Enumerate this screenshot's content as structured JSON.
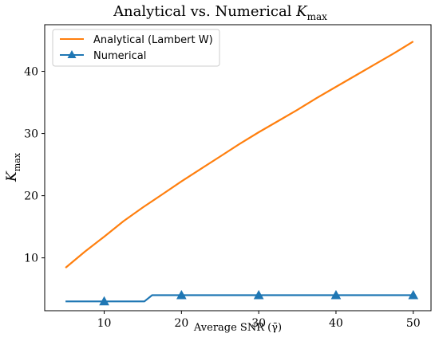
{
  "chart_data": {
    "type": "line",
    "title": "Analytical vs. Numerical K_max",
    "title_parts": {
      "prefix": "Analytical vs. Numerical ",
      "var": "K",
      "sub": "max"
    },
    "xlabel": "Average SNR (γ̄)",
    "ylabel": "K_max",
    "ylabel_parts": {
      "var": "K",
      "sub": "max"
    },
    "xlim": [
      2.3,
      52.3
    ],
    "ylim": [
      1.5,
      47.5
    ],
    "xticks": [
      10,
      20,
      30,
      40,
      50
    ],
    "yticks": [
      10,
      20,
      30,
      40
    ],
    "grid": false,
    "legend_position": "top-left",
    "series": [
      {
        "name": "Analytical (Lambert W)",
        "color": "#ff7f0e",
        "marker": "none",
        "x": [
          5,
          7.5,
          10,
          12.5,
          15,
          17.5,
          20,
          22.5,
          25,
          27.5,
          30,
          32.5,
          35,
          37.5,
          40,
          42.5,
          45,
          47.5,
          50
        ],
        "y": [
          8.4,
          11.0,
          13.4,
          15.9,
          18.1,
          20.2,
          22.3,
          24.3,
          26.3,
          28.3,
          30.2,
          32.0,
          33.8,
          35.7,
          37.5,
          39.3,
          41.1,
          42.9,
          44.8
        ]
      },
      {
        "name": "Numerical",
        "color": "#1f77b4",
        "marker": "triangle",
        "x": [
          5,
          15.2,
          16.2,
          50
        ],
        "y": [
          3,
          3,
          4,
          4
        ],
        "marker_x": [
          10,
          20,
          30,
          40,
          50
        ],
        "marker_y": [
          3,
          4,
          4,
          4,
          4
        ]
      }
    ]
  }
}
